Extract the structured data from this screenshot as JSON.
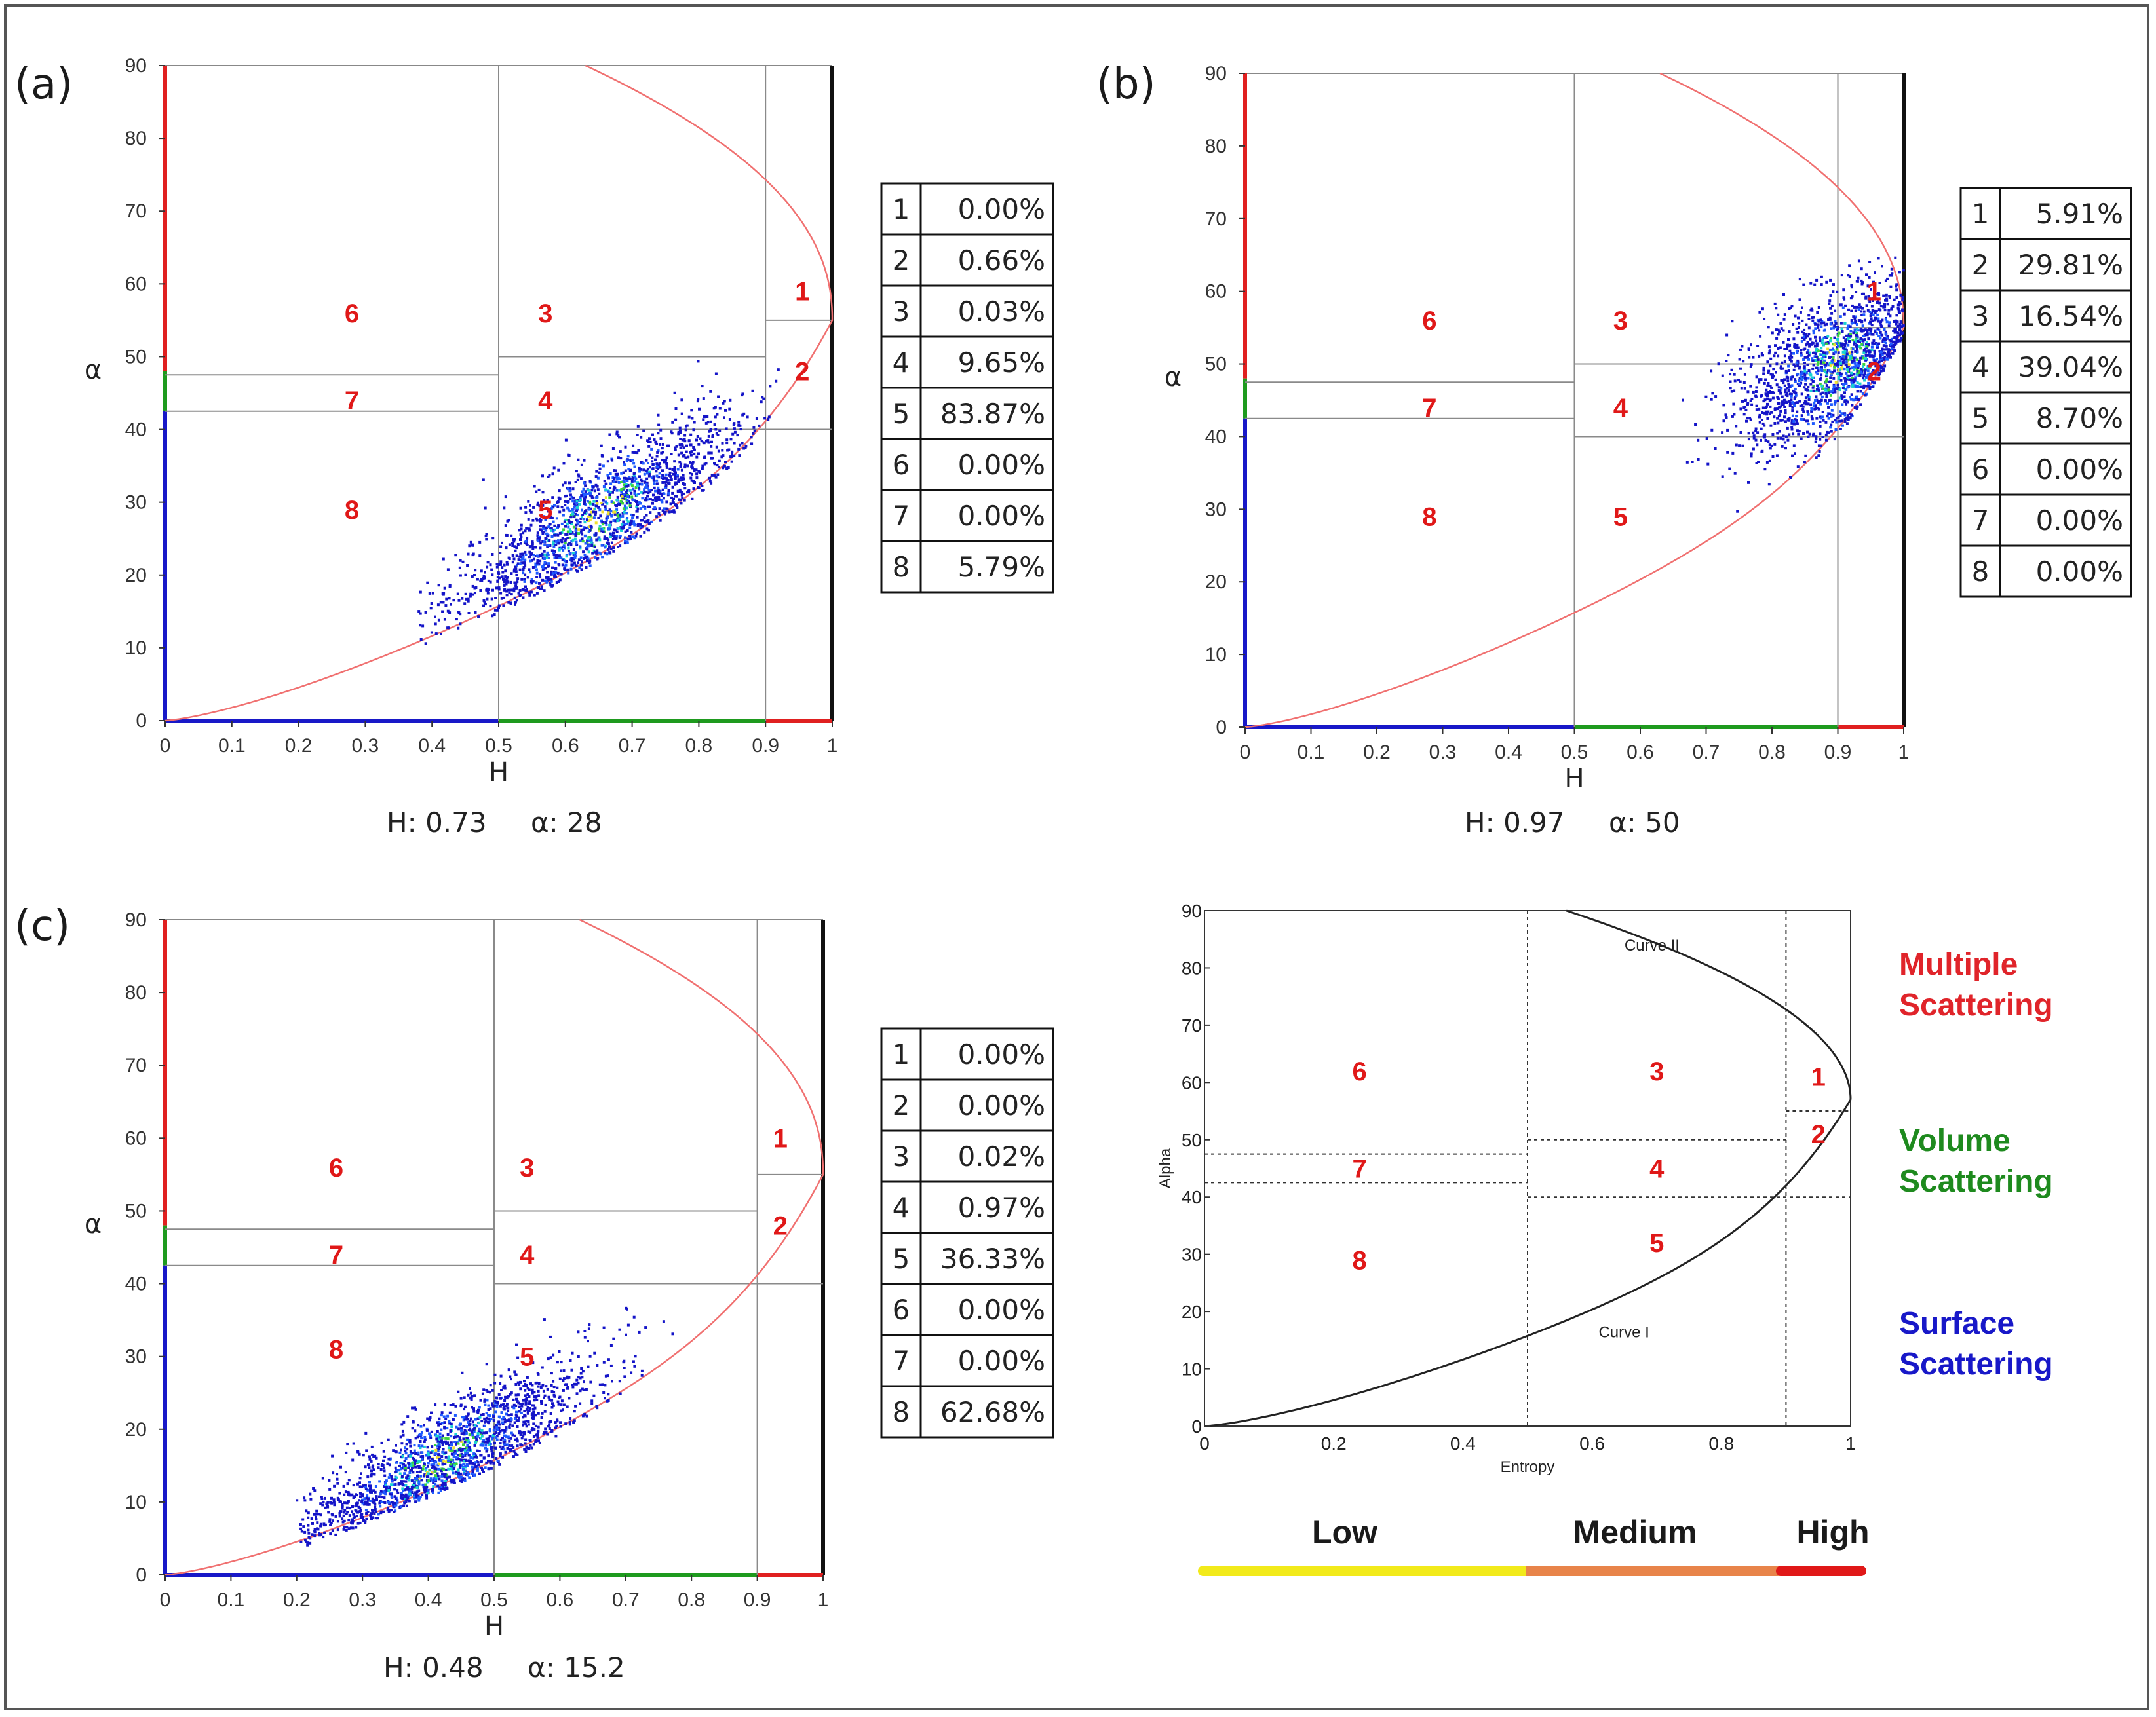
{
  "chart_data": [
    {
      "type": "scatter",
      "panel_label": "(a)",
      "xlabel": "H",
      "ylabel": "α",
      "xlim": [
        0,
        1
      ],
      "ylim": [
        0,
        90
      ],
      "x_ticks": [
        "0",
        "0.1",
        "0.2",
        "0.3",
        "0.4",
        "0.5",
        "0.6",
        "0.7",
        "0.8",
        "0.9",
        "1"
      ],
      "y_ticks": [
        "0",
        "10",
        "20",
        "30",
        "40",
        "50",
        "60",
        "70",
        "80",
        "90"
      ],
      "zone_labels": [
        {
          "label": "1",
          "H": 0.955,
          "alpha": 59
        },
        {
          "label": "2",
          "H": 0.955,
          "alpha": 48
        },
        {
          "label": "3",
          "H": 0.57,
          "alpha": 56
        },
        {
          "label": "4",
          "H": 0.57,
          "alpha": 44
        },
        {
          "label": "5",
          "H": 0.57,
          "alpha": 29
        },
        {
          "label": "6",
          "H": 0.28,
          "alpha": 56
        },
        {
          "label": "7",
          "H": 0.28,
          "alpha": 44
        },
        {
          "label": "8",
          "H": 0.28,
          "alpha": 29
        }
      ],
      "summary": {
        "H": "H: 0.73",
        "alpha": "α: 28"
      },
      "cluster": {
        "h_min": 0.38,
        "h_max": 0.92,
        "slope": 52,
        "intercept": -10,
        "spread_h": 0.07,
        "spread_a": 4,
        "count": 1800,
        "center_h": 0.65,
        "center_a": 28
      },
      "table": [
        {
          "zone": "1",
          "value": "0.00%"
        },
        {
          "zone": "2",
          "value": "0.66%"
        },
        {
          "zone": "3",
          "value": "0.03%"
        },
        {
          "zone": "4",
          "value": "9.65%"
        },
        {
          "zone": "5",
          "value": "83.87%"
        },
        {
          "zone": "6",
          "value": "0.00%"
        },
        {
          "zone": "7",
          "value": "0.00%"
        },
        {
          "zone": "8",
          "value": "5.79%"
        }
      ]
    },
    {
      "type": "scatter",
      "panel_label": "(b)",
      "xlabel": "H",
      "ylabel": "α",
      "xlim": [
        0,
        1
      ],
      "ylim": [
        0,
        90
      ],
      "x_ticks": [
        "0",
        "0.1",
        "0.2",
        "0.3",
        "0.4",
        "0.5",
        "0.6",
        "0.7",
        "0.8",
        "0.9",
        "1"
      ],
      "y_ticks": [
        "0",
        "10",
        "20",
        "30",
        "40",
        "50",
        "60",
        "70",
        "80",
        "90"
      ],
      "zone_labels": [
        {
          "label": "1",
          "H": 0.955,
          "alpha": 60
        },
        {
          "label": "2",
          "H": 0.955,
          "alpha": 49
        },
        {
          "label": "3",
          "H": 0.57,
          "alpha": 56
        },
        {
          "label": "4",
          "H": 0.57,
          "alpha": 44
        },
        {
          "label": "5",
          "H": 0.57,
          "alpha": 29
        },
        {
          "label": "6",
          "H": 0.28,
          "alpha": 56
        },
        {
          "label": "7",
          "H": 0.28,
          "alpha": 44
        },
        {
          "label": "8",
          "H": 0.28,
          "alpha": 29
        }
      ],
      "summary": {
        "H": "H: 0.97",
        "alpha": "α: 50"
      },
      "cluster": {
        "h_min": 0.65,
        "h_max": 1.0,
        "slope": 40,
        "intercept": 14,
        "spread_h": 0.05,
        "spread_a": 5,
        "count": 1800,
        "center_h": 0.9,
        "center_a": 50
      },
      "table": [
        {
          "zone": "1",
          "value": "5.91%"
        },
        {
          "zone": "2",
          "value": "29.81%"
        },
        {
          "zone": "3",
          "value": "16.54%"
        },
        {
          "zone": "4",
          "value": "39.04%"
        },
        {
          "zone": "5",
          "value": "8.70%"
        },
        {
          "zone": "6",
          "value": "0.00%"
        },
        {
          "zone": "7",
          "value": "0.00%"
        },
        {
          "zone": "8",
          "value": "0.00%"
        }
      ]
    },
    {
      "type": "scatter",
      "panel_label": "(c)",
      "xlabel": "H",
      "ylabel": "α",
      "xlim": [
        0,
        1
      ],
      "ylim": [
        0,
        90
      ],
      "x_ticks": [
        "0",
        "0.1",
        "0.2",
        "0.3",
        "0.4",
        "0.5",
        "0.6",
        "0.7",
        "0.8",
        "0.9",
        "1"
      ],
      "y_ticks": [
        "0",
        "10",
        "20",
        "30",
        "40",
        "50",
        "60",
        "70",
        "80",
        "90"
      ],
      "zone_labels": [
        {
          "label": "1",
          "H": 0.935,
          "alpha": 60
        },
        {
          "label": "2",
          "H": 0.935,
          "alpha": 48
        },
        {
          "label": "3",
          "H": 0.55,
          "alpha": 56
        },
        {
          "label": "4",
          "H": 0.55,
          "alpha": 44
        },
        {
          "label": "5",
          "H": 0.55,
          "alpha": 30
        },
        {
          "label": "6",
          "H": 0.26,
          "alpha": 56
        },
        {
          "label": "7",
          "H": 0.26,
          "alpha": 44
        },
        {
          "label": "8",
          "H": 0.26,
          "alpha": 31
        }
      ],
      "summary": {
        "H": "H: 0.48",
        "alpha": "α: 15.2"
      },
      "cluster": {
        "h_min": 0.2,
        "h_max": 0.8,
        "slope": 48,
        "intercept": -4,
        "spread_h": 0.07,
        "spread_a": 3.5,
        "count": 1800,
        "center_h": 0.42,
        "center_a": 16
      },
      "table": [
        {
          "zone": "1",
          "value": "0.00%"
        },
        {
          "zone": "2",
          "value": "0.00%"
        },
        {
          "zone": "3",
          "value": "0.02%"
        },
        {
          "zone": "4",
          "value": "0.97%"
        },
        {
          "zone": "5",
          "value": "36.33%"
        },
        {
          "zone": "6",
          "value": "0.00%"
        },
        {
          "zone": "7",
          "value": "0.00%"
        },
        {
          "zone": "8",
          "value": "62.68%"
        }
      ]
    },
    {
      "type": "line",
      "xlabel": "Entropy",
      "ylabel": "Alpha",
      "xlim": [
        0,
        1
      ],
      "ylim": [
        0,
        90
      ],
      "x_ticks": [
        "0",
        "0.2",
        "0.4",
        "0.6",
        "0.8",
        "1"
      ],
      "y_ticks": [
        "0",
        "10",
        "20",
        "30",
        "40",
        "50",
        "60",
        "70",
        "80",
        "90"
      ],
      "curve_labels": [
        "Curve II",
        "Curve I"
      ],
      "zone_labels": [
        {
          "label": "1",
          "H": 0.95,
          "alpha": 61
        },
        {
          "label": "2",
          "H": 0.95,
          "alpha": 51
        },
        {
          "label": "3",
          "H": 0.7,
          "alpha": 62
        },
        {
          "label": "4",
          "H": 0.7,
          "alpha": 45
        },
        {
          "label": "5",
          "H": 0.7,
          "alpha": 32
        },
        {
          "label": "6",
          "H": 0.24,
          "alpha": 62
        },
        {
          "label": "7",
          "H": 0.24,
          "alpha": 45
        },
        {
          "label": "8",
          "H": 0.24,
          "alpha": 29
        }
      ]
    }
  ],
  "legend": {
    "multiple": "Multiple\nScattering",
    "volume": "Volume\nScattering",
    "surface": "Surface\nScattering",
    "colors": {
      "multiple": "#e0242a",
      "volume": "#1e8a1e",
      "surface": "#1818c8"
    }
  },
  "entropy_scale": {
    "low": "Low",
    "medium": "Medium",
    "high": "High",
    "colors": {
      "low": "#f2ea1a",
      "medium": "#e8844a",
      "high": "#e01818"
    }
  }
}
